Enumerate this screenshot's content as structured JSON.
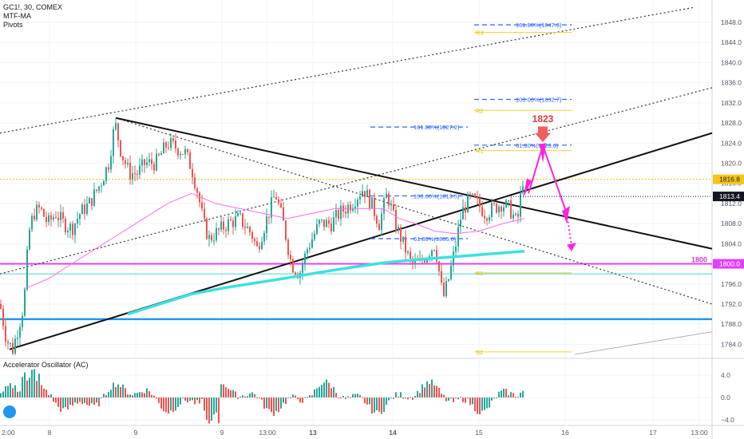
{
  "legend": {
    "symbol": "GC1!, 30, COMEX",
    "indicator_1": "MTF-MA",
    "indicator_2": "Pivots",
    "oscillator": "Accelerator Oscillator (AC)"
  },
  "colors": {
    "up": "#26a69a",
    "down": "#ef5350",
    "ma_magenta": "#ff6ce3",
    "ma_cyan": "#3ee0e0",
    "magenta_line": "#e040fb",
    "blue_level": "#2196f3",
    "fib": "#2962ff",
    "pivot": "#f0d030",
    "forecast": "#ff22dd"
  },
  "chart_data": {
    "type": "candlestick",
    "title": "",
    "x_ticks": [
      "2:00",
      "8",
      "9",
      "9",
      "13:00",
      "13",
      "14",
      "15",
      "16",
      "17",
      "13:00"
    ],
    "y_ticks": [
      1784.0,
      1788.0,
      1792.0,
      1796.0,
      1800.0,
      1804.0,
      1808.0,
      1812.0,
      1816.0,
      1820.0,
      1824.0,
      1828.0,
      1832.0,
      1836.0,
      1840.0,
      1844.0,
      1848.0
    ],
    "ylim": [
      1782.0,
      1850.0
    ],
    "price_labels": {
      "dotted_level": "1816.8",
      "last_price": "1813.4",
      "level_1800": "1800.0"
    },
    "annotations": {
      "target_label": "1823",
      "level_1800_label": "1800"
    },
    "fib_levels": [
      {
        "label": "161.80%(1847.5)",
        "price": 1847.5
      },
      {
        "label": "100.00%(1832.7)",
        "price": 1832.7
      },
      {
        "label": "161.80%(1827.2)",
        "price": 1827.2
      },
      {
        "label": "61.80%(1823.6)",
        "price": 1823.6
      },
      {
        "label": "100.00%(1813.5)",
        "price": 1813.5
      },
      {
        "label": "61.80%(1805.0)",
        "price": 1805.0
      }
    ],
    "pivot_labels": [
      "R3",
      "R2",
      "R1",
      "S1",
      "S2"
    ],
    "oscillator": {
      "name": "Accelerator Oscillator (AC)",
      "y_ticks": [
        4.0,
        0.0,
        -4.0
      ]
    }
  }
}
